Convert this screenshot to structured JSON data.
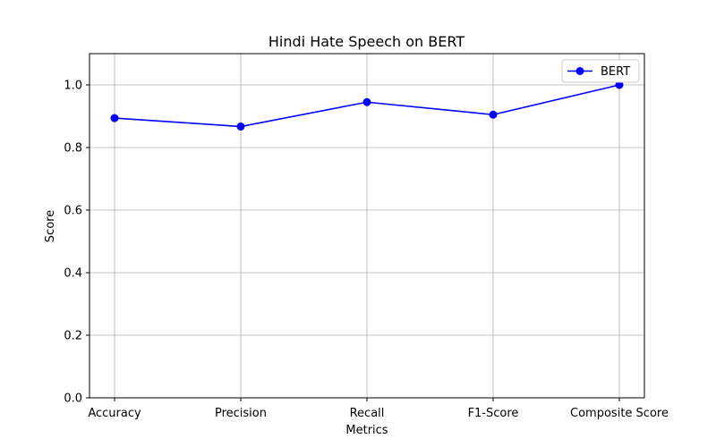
{
  "chart_data": {
    "type": "line",
    "title": "Hindi Hate Speech on BERT",
    "xlabel": "Metrics",
    "ylabel": "Score",
    "categories": [
      "Accuracy",
      "Precision",
      "Recall",
      "F1-Score",
      "Composite Score"
    ],
    "series": [
      {
        "name": "BERT",
        "values": [
          0.894,
          0.867,
          0.945,
          0.905,
          1.0
        ],
        "color": "#0000ff",
        "marker": "circle"
      }
    ],
    "ylim": [
      0,
      1.1
    ],
    "yticks": [
      "0.0",
      "0.2",
      "0.4",
      "0.6",
      "0.8",
      "1.0"
    ],
    "grid": true,
    "legend_position": "top-right"
  }
}
